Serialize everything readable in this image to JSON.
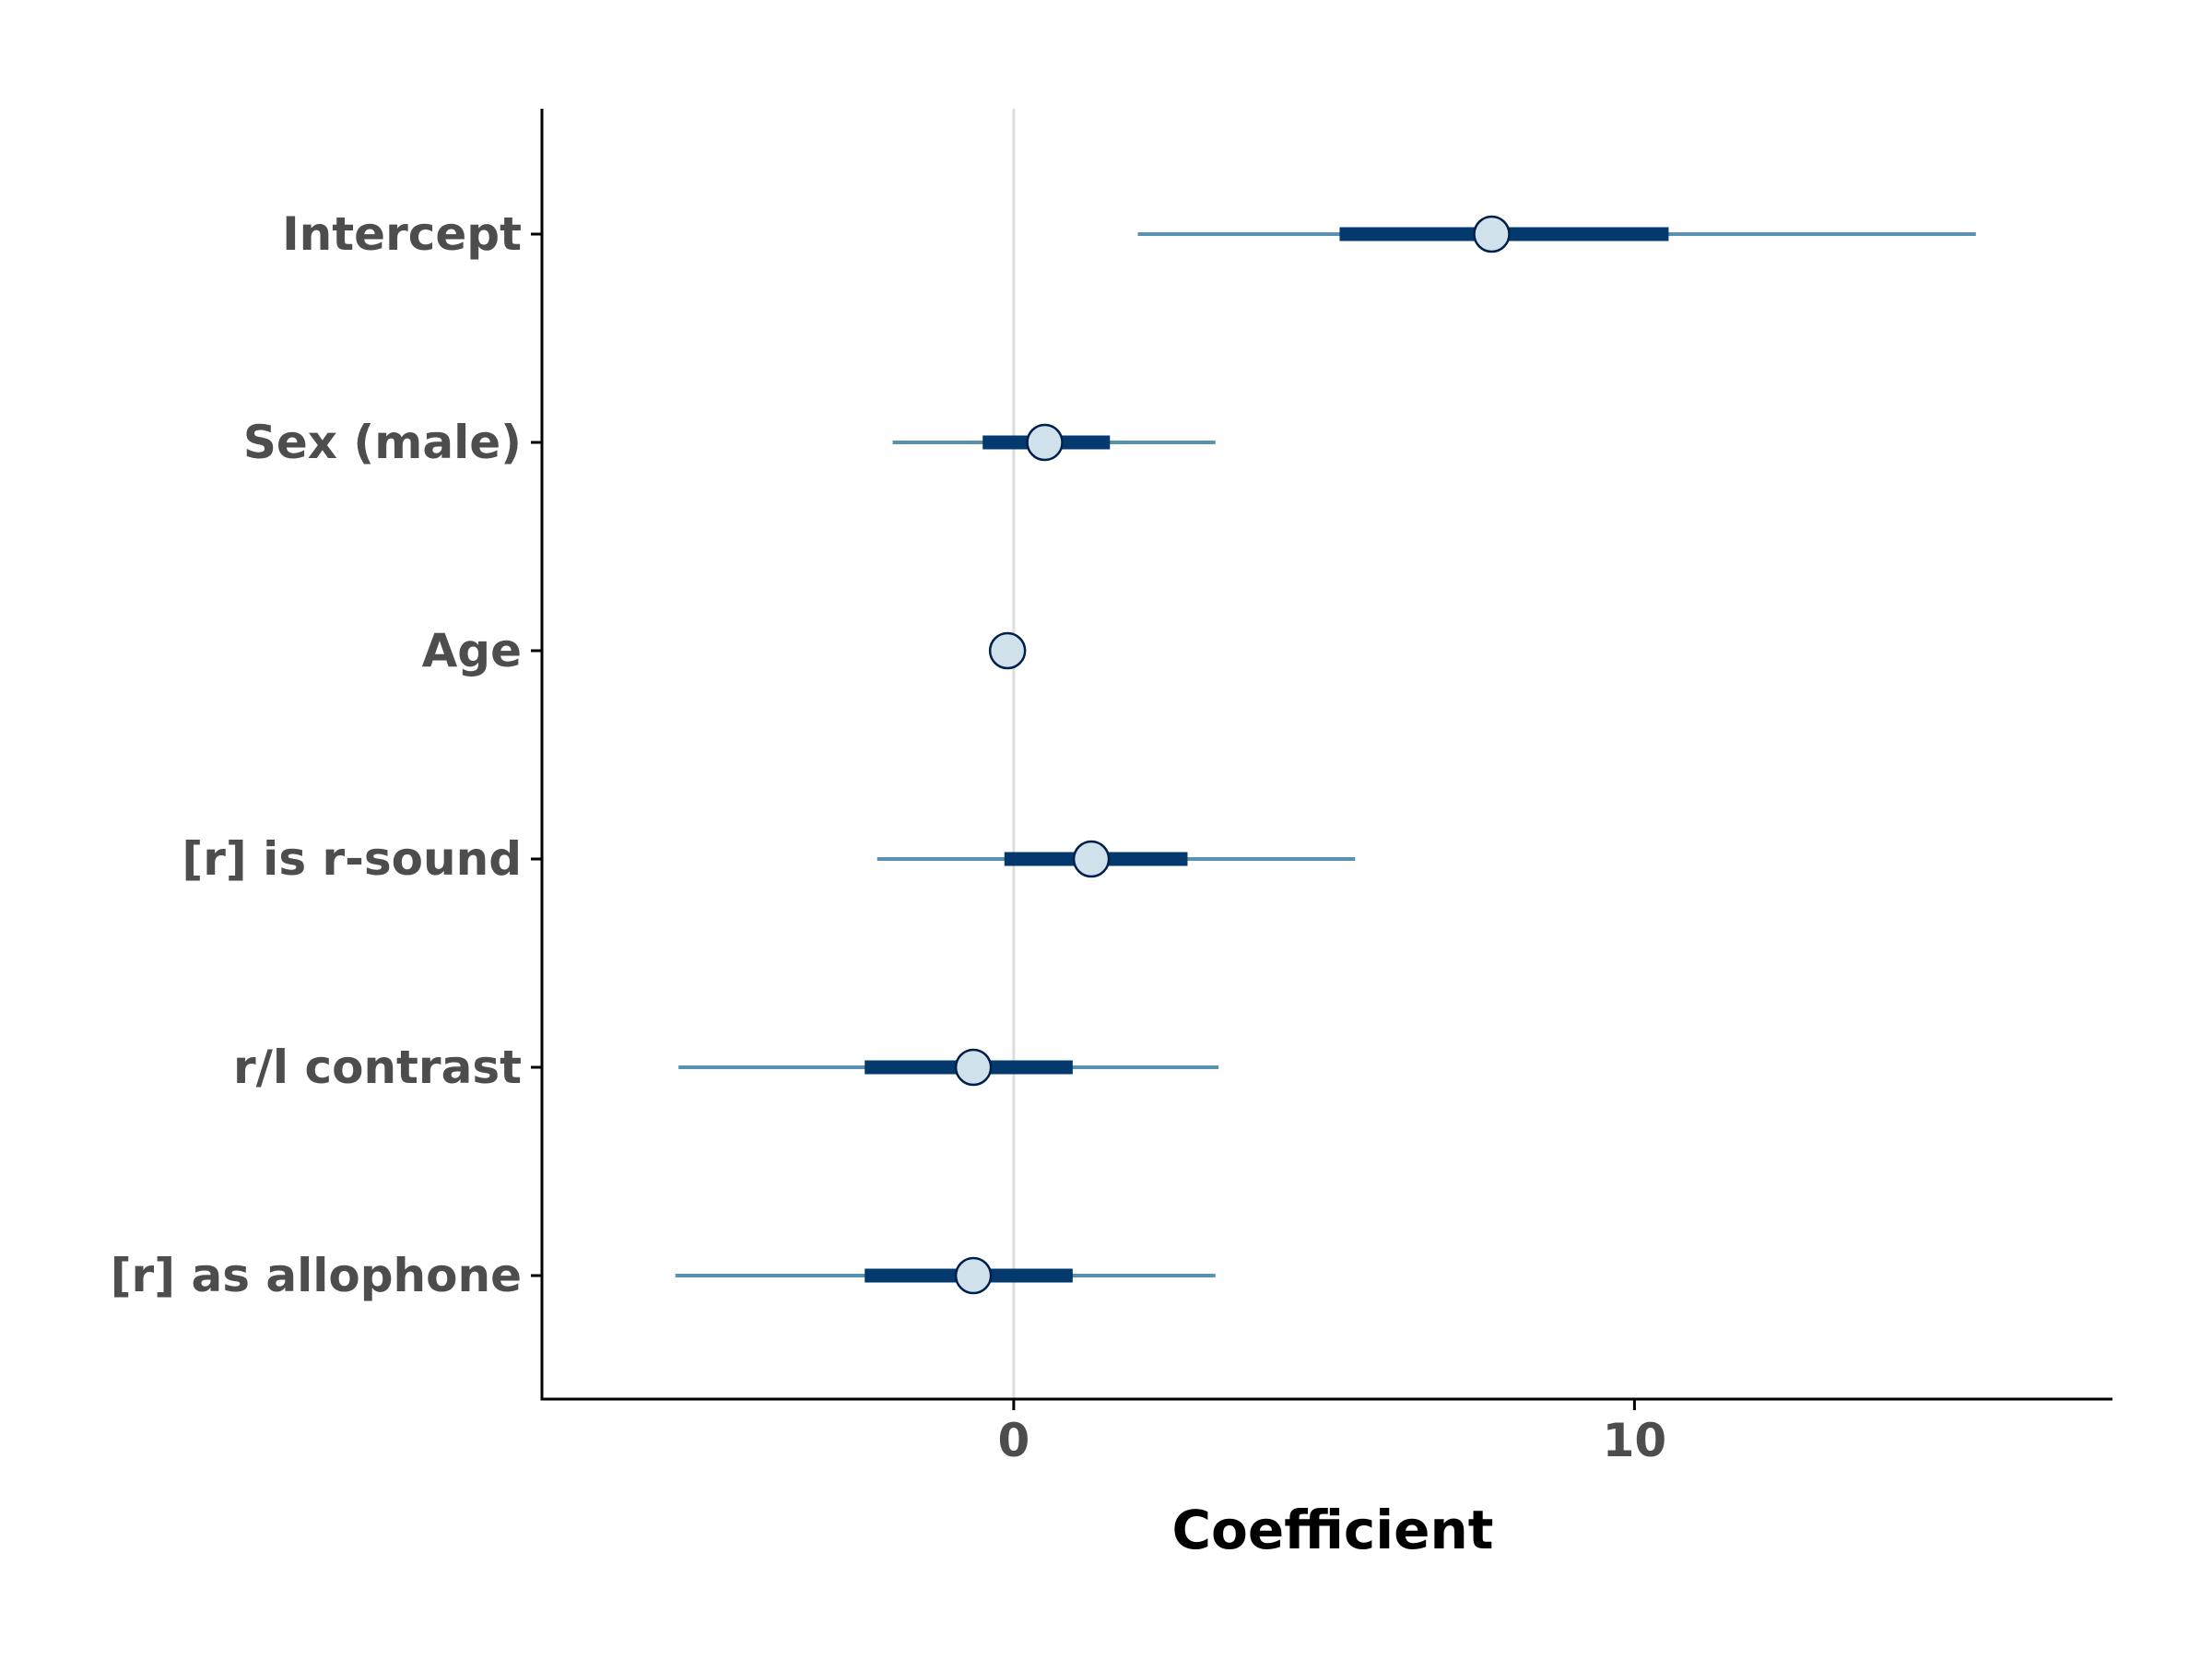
{
  "chart_data": {
    "type": "scatter",
    "title": "",
    "xlabel": "Coefficient",
    "ylabel": "",
    "xlim": [
      -7.6,
      17.7
    ],
    "x_ticks": [
      0,
      10
    ],
    "x_tick_labels": [
      "0",
      "10"
    ],
    "reference_line_x": 0,
    "grid": false,
    "legend": "none",
    "categories": [
      "Intercept",
      "Sex (male)",
      "Age",
      "[r] is r-sound",
      "r/l contrast",
      "[r] as allophone"
    ],
    "estimates": [
      7.7,
      0.5,
      -0.1,
      1.25,
      -0.65,
      -0.65
    ],
    "inner_interval": [
      [
        5.25,
        10.55
      ],
      [
        -0.5,
        1.55
      ],
      [
        -0.1,
        -0.1
      ],
      [
        -0.15,
        2.8
      ],
      [
        -2.4,
        0.95
      ],
      [
        -2.4,
        0.95
      ]
    ],
    "outer_interval": [
      [
        2.0,
        15.5
      ],
      [
        -1.95,
        3.25
      ],
      [
        -0.1,
        -0.1
      ],
      [
        -2.2,
        5.5
      ],
      [
        -5.4,
        3.3
      ],
      [
        -5.45,
        3.25
      ]
    ],
    "colors": {
      "outer_line": "#5b91b0",
      "inner_line": "#03396c",
      "point_fill": "#d1e1ec",
      "point_stroke": "#011f4b",
      "reference_line": "#dddddd",
      "axis": "#000000"
    }
  }
}
